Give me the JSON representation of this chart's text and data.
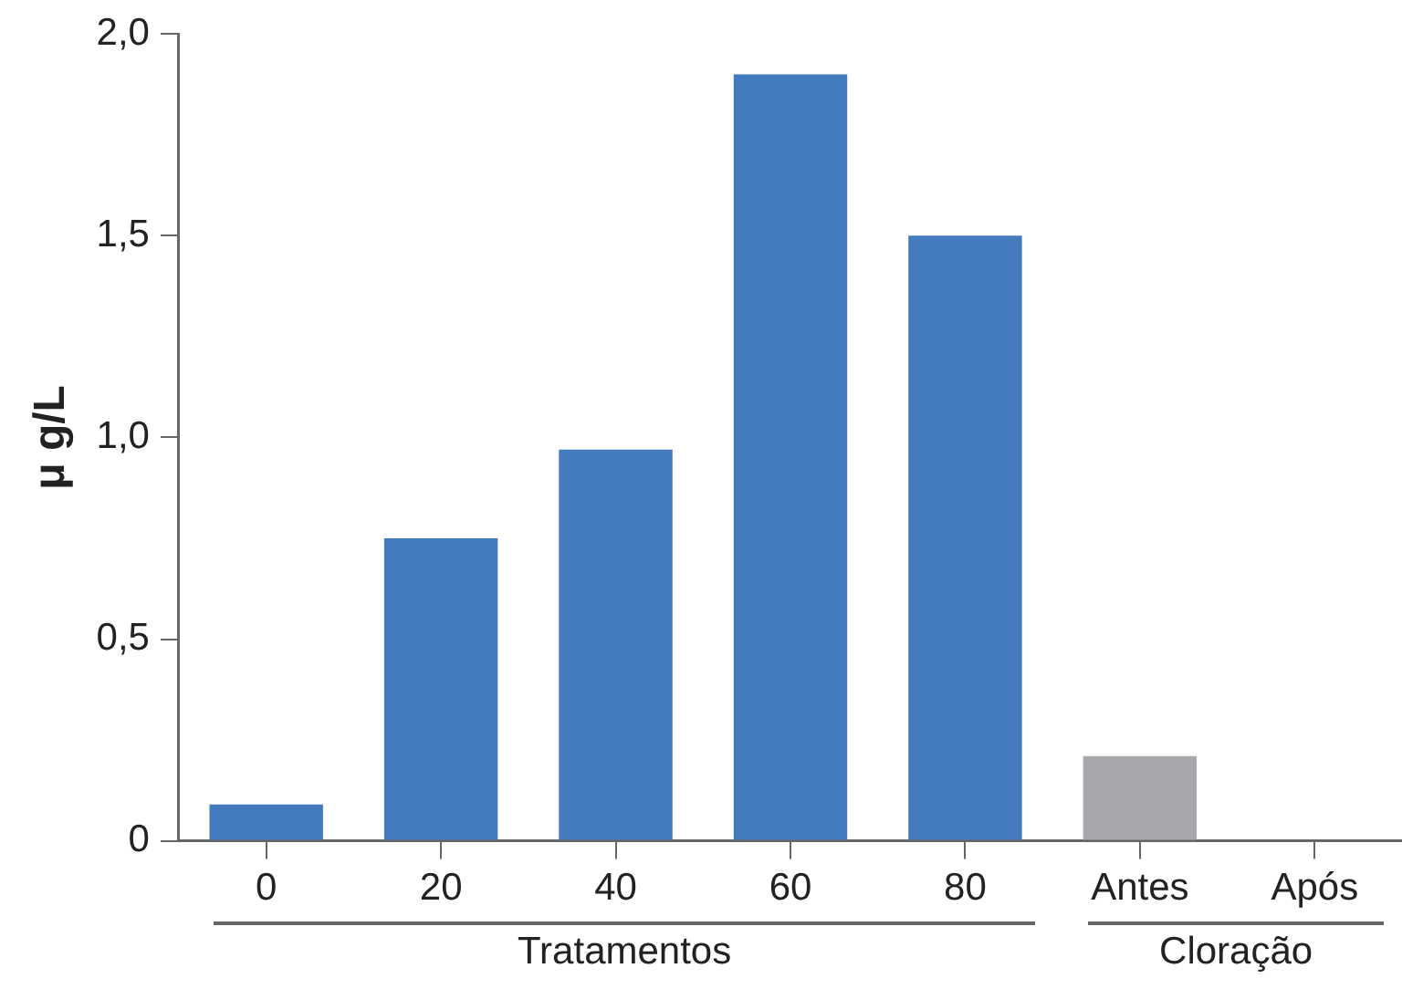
{
  "chart_data": {
    "type": "bar",
    "ylabel": "μ g/L",
    "categories": [
      "0",
      "20",
      "40",
      "60",
      "80",
      "Antes",
      "Após"
    ],
    "values": [
      0.09,
      0.75,
      0.97,
      1.9,
      1.5,
      0.21,
      0
    ],
    "colors": [
      "#447bbe",
      "#447bbe",
      "#447bbe",
      "#447bbe",
      "#447bbe",
      "#a7a8ab",
      "#a7a8ab"
    ],
    "ylim": [
      0,
      2
    ],
    "yticks": [
      0,
      {
        "value": 0.5,
        "label": "0,5"
      },
      {
        "value": 1,
        "label": "1,0"
      },
      {
        "value": 1.5,
        "label": "1,5"
      },
      {
        "value": 2,
        "label": "2,0"
      }
    ],
    "grid": false,
    "legend": false,
    "annotations": [
      "Tratamentos",
      "Cloração"
    ]
  }
}
